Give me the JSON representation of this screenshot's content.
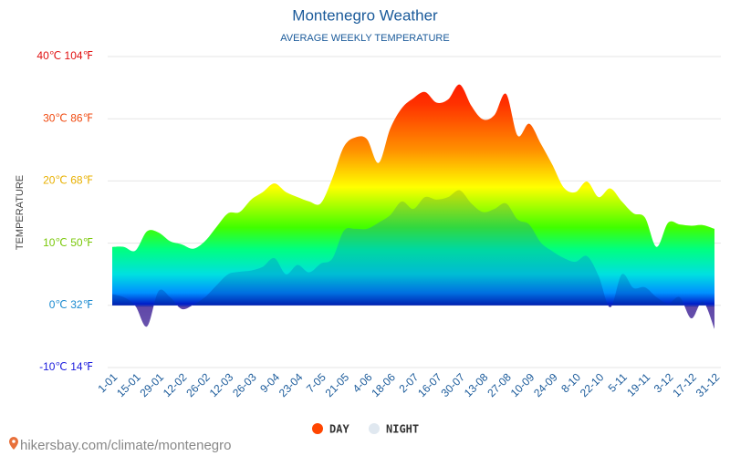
{
  "chart_data": {
    "type": "area",
    "title": "Montenegro Weather",
    "subtitle": "AVERAGE WEEKLY TEMPERATURE",
    "y_label": "TEMPERATURE",
    "footer": "hikersbay.com/climate/montenegro",
    "categories": [
      "1-01",
      null,
      "15-01",
      null,
      "29-01",
      null,
      "12-02",
      null,
      "26-02",
      null,
      "12-03",
      null,
      "26-03",
      null,
      "9-04",
      null,
      "23-04",
      null,
      "7-05",
      null,
      "21-05",
      null,
      "4-06",
      null,
      "18-06",
      null,
      "2-07",
      null,
      "16-07",
      null,
      "30-07",
      null,
      "13-08",
      null,
      "27-08",
      null,
      "10-09",
      null,
      "24-09",
      null,
      "8-10",
      null,
      "22-10",
      null,
      "5-11",
      null,
      "19-11",
      null,
      "3-12",
      null,
      "17-12",
      null,
      "31-12"
    ],
    "series": [
      {
        "name": "DAY",
        "color": "#ff4500",
        "values": [
          9.4,
          9.4,
          8.8,
          11.9,
          11.7,
          10.3,
          9.8,
          9.1,
          10.3,
          12.6,
          14.8,
          15.0,
          17.0,
          18.2,
          19.6,
          18.2,
          17.4,
          16.7,
          16.4,
          20.4,
          25.5,
          27.0,
          26.7,
          22.9,
          28.4,
          31.7,
          33.3,
          34.3,
          32.6,
          33.1,
          35.5,
          32.1,
          29.9,
          30.6,
          34.0,
          27.3,
          29.2,
          26.0,
          22.6,
          18.9,
          18.2,
          19.9,
          17.4,
          18.8,
          16.7,
          14.8,
          14.1,
          9.4,
          13.3,
          13.0,
          12.8,
          12.9,
          12.3
        ]
      },
      {
        "name": "NIGHT",
        "color": "#e0e8f0",
        "values": [
          1.8,
          1.3,
          -0.1,
          -3.4,
          2.3,
          1.3,
          -0.6,
          0.1,
          1.3,
          3.2,
          5.0,
          5.4,
          5.6,
          6.2,
          7.6,
          5.0,
          6.5,
          5.3,
          6.7,
          7.5,
          12.0,
          12.3,
          12.3,
          13.3,
          14.5,
          16.7,
          15.5,
          17.4,
          17.0,
          17.4,
          18.5,
          16.4,
          15.0,
          15.5,
          16.4,
          13.8,
          13.0,
          10.1,
          8.7,
          7.6,
          7.0,
          7.9,
          4.7,
          -0.3,
          5.0,
          2.8,
          2.9,
          1.3,
          0.3,
          1.3,
          -2.1,
          0.6,
          -3.8
        ]
      }
    ],
    "ylim": [
      -10,
      40
    ],
    "yticks": [
      {
        "value": -10,
        "label": "-10℃ 14℉"
      },
      {
        "value": 0,
        "label": "0℃ 32℉"
      },
      {
        "value": 10,
        "label": "10℃ 50℉"
      },
      {
        "value": 20,
        "label": "20℃ 68℉"
      },
      {
        "value": 30,
        "label": "30℃ 86℉"
      },
      {
        "value": 40,
        "label": "40℃ 104℉"
      }
    ],
    "ytick_colors": [
      "#1a1adc",
      "#1a8ad0",
      "#7ac80a",
      "#e8b000",
      "#f04a10",
      "#e01010"
    ],
    "grid": true
  }
}
